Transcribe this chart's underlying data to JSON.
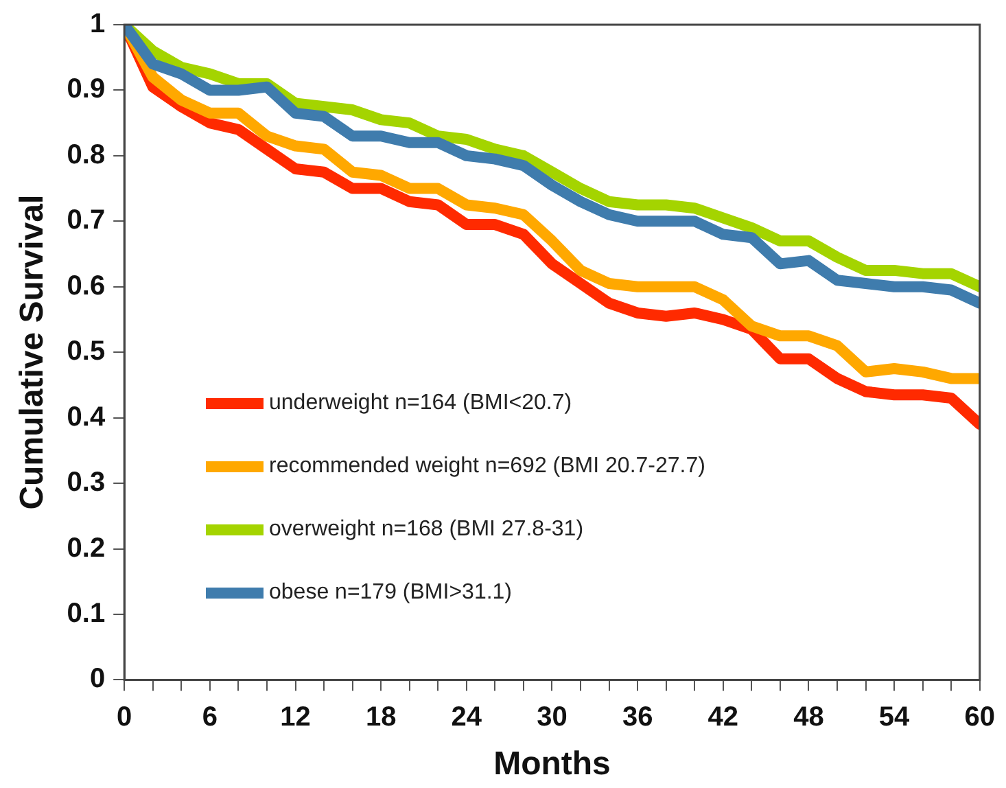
{
  "chart_data": {
    "type": "line",
    "xlabel": "Months",
    "ylabel": "Cumulative Survival",
    "x": [
      0,
      2,
      4,
      6,
      8,
      10,
      12,
      14,
      16,
      18,
      20,
      22,
      24,
      26,
      28,
      30,
      32,
      34,
      36,
      38,
      40,
      42,
      44,
      46,
      48,
      50,
      52,
      54,
      56,
      58,
      60
    ],
    "series": [
      {
        "name": "underweight n=164 (BMI<20.7)",
        "color": "#ff2a00",
        "values": [
          1.0,
          0.905,
          0.875,
          0.85,
          0.84,
          0.81,
          0.78,
          0.775,
          0.75,
          0.75,
          0.73,
          0.725,
          0.695,
          0.695,
          0.68,
          0.635,
          0.605,
          0.575,
          0.56,
          0.555,
          0.56,
          0.55,
          0.535,
          0.49,
          0.49,
          0.46,
          0.44,
          0.435,
          0.435,
          0.43,
          0.39
        ]
      },
      {
        "name": "recommended weight n=692 (BMI 20.7-27.7)",
        "color": "#ffa800",
        "values": [
          1.0,
          0.92,
          0.885,
          0.865,
          0.865,
          0.83,
          0.815,
          0.81,
          0.775,
          0.77,
          0.75,
          0.75,
          0.725,
          0.72,
          0.71,
          0.67,
          0.625,
          0.605,
          0.6,
          0.6,
          0.6,
          0.58,
          0.54,
          0.525,
          0.525,
          0.51,
          0.47,
          0.475,
          0.47,
          0.46,
          0.46
        ]
      },
      {
        "name": "overweight n=168 (BMI 27.8-31)",
        "color": "#a4d400",
        "values": [
          1.0,
          0.96,
          0.935,
          0.925,
          0.91,
          0.91,
          0.88,
          0.875,
          0.87,
          0.855,
          0.85,
          0.83,
          0.825,
          0.81,
          0.8,
          0.775,
          0.75,
          0.73,
          0.725,
          0.725,
          0.72,
          0.705,
          0.69,
          0.67,
          0.67,
          0.645,
          0.625,
          0.625,
          0.62,
          0.62,
          0.6
        ]
      },
      {
        "name": "obese n=179 (BMI>31.1)",
        "color": "#3f7cad",
        "values": [
          1.0,
          0.94,
          0.925,
          0.9,
          0.9,
          0.905,
          0.865,
          0.86,
          0.83,
          0.83,
          0.82,
          0.82,
          0.8,
          0.795,
          0.785,
          0.755,
          0.73,
          0.71,
          0.7,
          0.7,
          0.7,
          0.68,
          0.675,
          0.635,
          0.64,
          0.61,
          0.605,
          0.6,
          0.6,
          0.595,
          0.575
        ]
      }
    ],
    "xlim": [
      0,
      60
    ],
    "xticks": [
      0,
      {
        "value": 2,
        "label": null
      },
      {
        "value": 4,
        "label": null
      },
      6,
      {
        "value": 8,
        "label": null
      },
      {
        "value": 10,
        "label": null
      },
      12,
      {
        "value": 14,
        "label": null
      },
      {
        "value": 16,
        "label": null
      },
      18,
      {
        "value": 20,
        "label": null
      },
      {
        "value": 22,
        "label": null
      },
      24,
      {
        "value": 26,
        "label": null
      },
      {
        "value": 28,
        "label": null
      },
      30,
      {
        "value": 32,
        "label": null
      },
      {
        "value": 34,
        "label": null
      },
      36,
      {
        "value": 38,
        "label": null
      },
      {
        "value": 40,
        "label": null
      },
      42,
      {
        "value": 44,
        "label": null
      },
      {
        "value": 46,
        "label": null
      },
      48,
      {
        "value": 50,
        "label": null
      },
      {
        "value": 52,
        "label": null
      },
      54,
      {
        "value": 56,
        "label": null
      },
      {
        "value": 58,
        "label": null
      },
      60
    ],
    "ylim": [
      0,
      1
    ],
    "yticks": [
      0,
      0.1,
      0.2,
      0.3,
      0.4,
      0.5,
      0.6,
      0.7,
      0.8,
      0.9,
      1
    ],
    "grid": false,
    "legend": "left",
    "marker": "none",
    "line_style": "solid"
  }
}
